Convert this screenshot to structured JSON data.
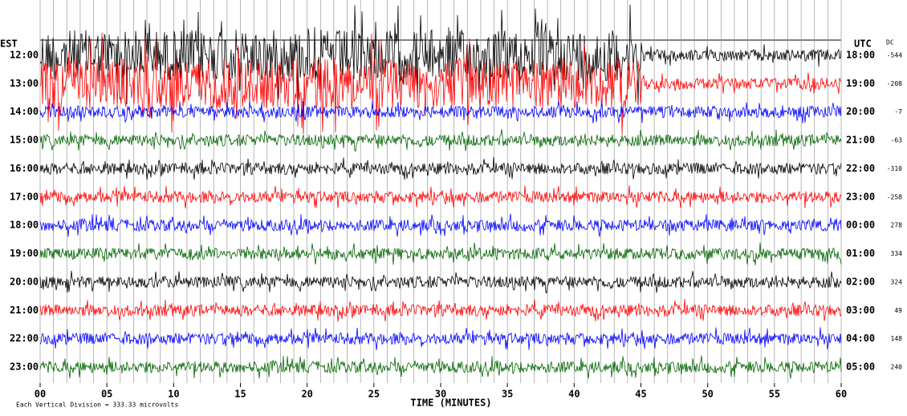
{
  "chart_data": {
    "type": "helicorder",
    "left_header": "EST",
    "right_header": "UTC",
    "dc_header": "DC",
    "x_label": "TIME (MINUTES)",
    "footer": "Each Vertical Division =  333.33 microvolts",
    "xlim": [
      0,
      60
    ],
    "xticks": [
      {
        "value": 0,
        "label": "00"
      },
      {
        "value": 5,
        "label": "05"
      },
      10,
      15,
      20,
      25,
      30,
      35,
      40,
      45,
      50,
      55,
      60
    ],
    "rows": [
      {
        "est": "12:00",
        "utc": "18:00",
        "dc": -544,
        "color": "#000000"
      },
      {
        "est": "13:00",
        "utc": "19:00",
        "dc": -208,
        "color": "#ff0000"
      },
      {
        "est": "14:00",
        "utc": "20:00",
        "dc": -7,
        "color": "#0000ff"
      },
      {
        "est": "15:00",
        "utc": "21:00",
        "dc": -63,
        "color": "#006400"
      },
      {
        "est": "16:00",
        "utc": "22:00",
        "dc": -310,
        "color": "#000000"
      },
      {
        "est": "17:00",
        "utc": "23:00",
        "dc": -258,
        "color": "#ff0000"
      },
      {
        "est": "18:00",
        "utc": "00:00",
        "dc": 278,
        "color": "#0000ff"
      },
      {
        "est": "19:00",
        "utc": "01:00",
        "dc": 334,
        "color": "#006400"
      },
      {
        "est": "20:00",
        "utc": "02:00",
        "dc": 324,
        "color": "#000000"
      },
      {
        "est": "21:00",
        "utc": "03:00",
        "dc": 49,
        "color": "#ff0000"
      },
      {
        "est": "22:00",
        "utc": "04:00",
        "dc": 148,
        "color": "#0000ff"
      },
      {
        "est": "23:00",
        "utc": "05:00",
        "dc": 240,
        "color": "#006400"
      }
    ]
  }
}
